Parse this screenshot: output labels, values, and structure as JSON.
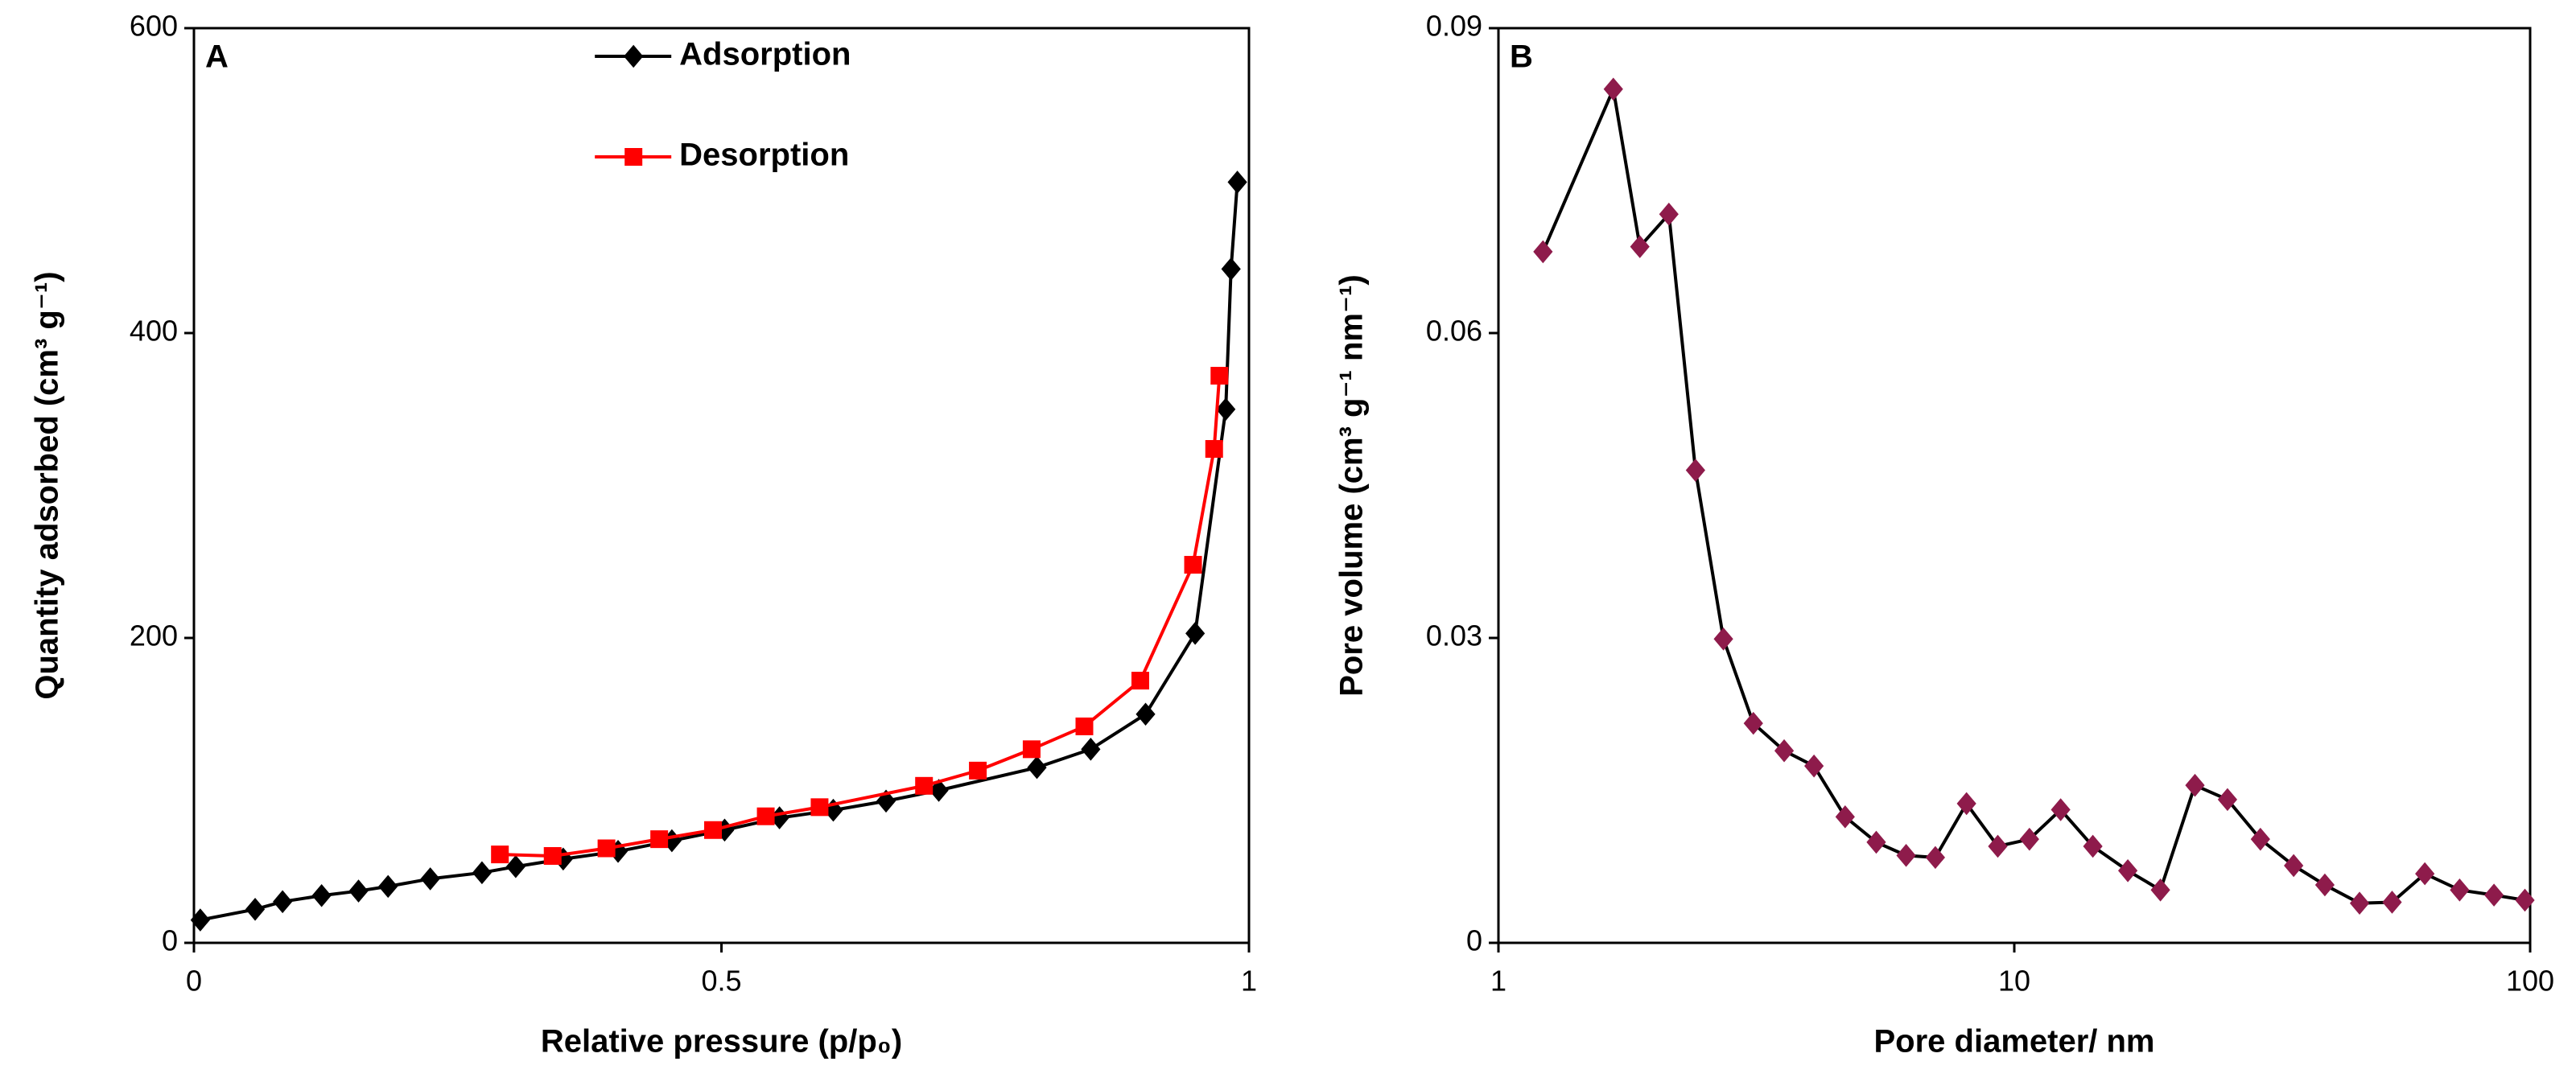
{
  "chart_data": [
    {
      "type": "line",
      "annotation": "A",
      "x_label": "Relative pressure (p/p₀)",
      "y_label": "Quantity adsorbed (cm³ g⁻¹)",
      "xlim": [
        0,
        1
      ],
      "ylim": [
        0,
        600
      ],
      "xticks": [
        0,
        0.5,
        1
      ],
      "yticks": [
        0,
        200,
        400,
        600
      ],
      "legend": "top-center",
      "series": [
        {
          "name": "Adsorption",
          "color": "#000000",
          "marker": "diamond",
          "x": [
            0.006,
            0.058,
            0.084,
            0.121,
            0.156,
            0.184,
            0.224,
            0.273,
            0.305,
            0.35,
            0.402,
            0.453,
            0.503,
            0.555,
            0.606,
            0.656,
            0.706,
            0.799,
            0.85,
            0.902,
            0.949,
            0.978,
            0.983,
            0.989
          ],
          "values": [
            15,
            22,
            27,
            31,
            34,
            37,
            42,
            46,
            50,
            55,
            60,
            67,
            74,
            82,
            87,
            93,
            100,
            115,
            127,
            150,
            203,
            350,
            442,
            499
          ]
        },
        {
          "name": "Desorption",
          "color": "#ff0000",
          "marker": "square",
          "x": [
            0.29,
            0.34,
            0.391,
            0.441,
            0.492,
            0.542,
            0.593,
            0.692,
            0.743,
            0.794,
            0.844,
            0.897,
            0.947,
            0.967,
            0.972
          ],
          "values": [
            58,
            57,
            62,
            68,
            74,
            83,
            89,
            103,
            113,
            127,
            142,
            172,
            248,
            324,
            372
          ]
        }
      ]
    },
    {
      "type": "line",
      "annotation": "B",
      "x_label": "Pore diameter/ nm",
      "y_label": "Pore volume (cm³ g⁻¹ nm⁻¹)",
      "xlim": [
        1,
        100
      ],
      "xscale": "log",
      "ylim": [
        0,
        0.09
      ],
      "xticks": [
        1,
        10,
        100
      ],
      "yticks": [
        0,
        0.03,
        0.06,
        0.09
      ],
      "series": [
        {
          "color": "#000000",
          "marker": "diamond",
          "marker_color": "#8e1b4b",
          "x": [
            1.22,
            1.67,
            1.88,
            2.14,
            2.41,
            2.73,
            3.12,
            3.58,
            4.09,
            4.7,
            5.4,
            6.17,
            7.03,
            8.08,
            9.29,
            10.7,
            12.3,
            14.2,
            16.6,
            19.2,
            22.4,
            25.9,
            30,
            34.8,
            40,
            46.7,
            54,
            62.5,
            73,
            85.1,
            97.7
          ],
          "values": [
            0.068,
            0.084,
            0.0685,
            0.0717,
            0.0465,
            0.0299,
            0.0216,
            0.0189,
            0.0174,
            0.0124,
            0.0099,
            0.0086,
            0.0084,
            0.0137,
            0.0095,
            0.0102,
            0.0131,
            0.0095,
            0.0071,
            0.0052,
            0.0155,
            0.0141,
            0.0102,
            0.0076,
            0.0057,
            0.0039,
            0.004,
            0.0068,
            0.0052,
            0.0047,
            0.0042
          ]
        }
      ]
    }
  ]
}
